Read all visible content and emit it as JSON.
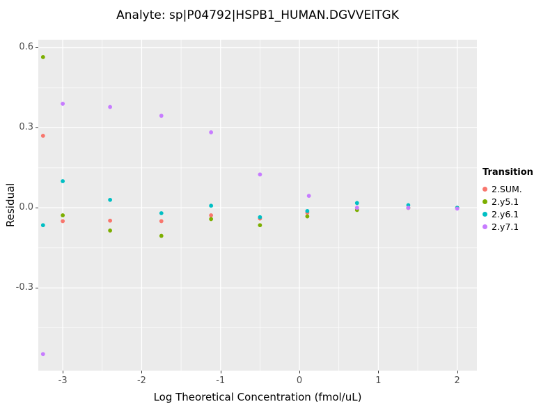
{
  "chart_data": {
    "type": "scatter",
    "title": "Analyte: sp|P04792|HSPB1_HUMAN.DGVVEITGK",
    "xlabel": "Log Theoretical Concentration (fmol/uL)",
    "ylabel": "Residual",
    "legend_title": "Transition",
    "legend_position": "right",
    "grid": true,
    "panel_bg": "#EBEBEB",
    "grid_color": "#FFFFFF",
    "tick_label_color": "#4D4D4D",
    "xlim": [
      -3.31,
      2.25
    ],
    "ylim": [
      -0.61,
      0.63
    ],
    "x_ticks": [
      {
        "v": -3,
        "label": "-3"
      },
      {
        "v": -2,
        "label": "-2"
      },
      {
        "v": -1,
        "label": "-1"
      },
      {
        "v": 0,
        "label": "0"
      },
      {
        "v": 1,
        "label": "1"
      },
      {
        "v": 2,
        "label": "2"
      }
    ],
    "y_ticks": [
      {
        "v": 0.6,
        "label": "0.6"
      },
      {
        "v": 0.3,
        "label": "0.3"
      },
      {
        "v": 0.0,
        "label": "0.0"
      },
      {
        "v": -0.3,
        "label": "-0.3"
      }
    ],
    "x_minor": [
      -2.5,
      -1.5,
      -0.5,
      0.5,
      1.5
    ],
    "y_minor": [
      0.45,
      0.15,
      -0.15,
      -0.45
    ],
    "series": [
      {
        "name": "2.SUM.",
        "color": "#F8766D",
        "points": [
          [
            -3.25,
            0.27
          ],
          [
            -3.0,
            -0.05
          ],
          [
            -2.4,
            -0.048
          ],
          [
            -1.75,
            -0.05
          ],
          [
            -1.12,
            -0.028
          ],
          [
            -0.5,
            -0.04
          ],
          [
            0.1,
            -0.018
          ],
          [
            0.73,
            0.0
          ],
          [
            1.38,
            0.0
          ],
          [
            2.0,
            0.0
          ]
        ]
      },
      {
        "name": "2.y5.1",
        "color": "#7CAE00",
        "points": [
          [
            -3.25,
            0.565
          ],
          [
            -3.0,
            -0.028
          ],
          [
            -2.4,
            -0.085
          ],
          [
            -1.75,
            -0.105
          ],
          [
            -1.12,
            -0.042
          ],
          [
            -0.5,
            -0.065
          ],
          [
            0.1,
            -0.032
          ],
          [
            0.73,
            -0.008
          ],
          [
            1.38,
            0.0
          ],
          [
            2.0,
            0.0
          ]
        ]
      },
      {
        "name": "2.y6.1",
        "color": "#00BFC4",
        "points": [
          [
            -3.25,
            -0.065
          ],
          [
            -3.0,
            0.1
          ],
          [
            -2.4,
            0.03
          ],
          [
            -1.75,
            -0.02
          ],
          [
            -1.12,
            0.008
          ],
          [
            -0.5,
            -0.035
          ],
          [
            0.1,
            -0.012
          ],
          [
            0.73,
            0.018
          ],
          [
            1.38,
            0.01
          ],
          [
            2.0,
            0.0
          ]
        ]
      },
      {
        "name": "2.y7.1",
        "color": "#C77CFF",
        "points": [
          [
            -3.25,
            -0.548
          ],
          [
            -3.0,
            0.39
          ],
          [
            -2.4,
            0.378
          ],
          [
            -1.75,
            0.345
          ],
          [
            -1.12,
            0.283
          ],
          [
            -0.5,
            0.125
          ],
          [
            0.12,
            0.045
          ],
          [
            0.73,
            0.0
          ],
          [
            1.38,
            0.0
          ],
          [
            2.0,
            -0.003
          ]
        ]
      }
    ]
  }
}
